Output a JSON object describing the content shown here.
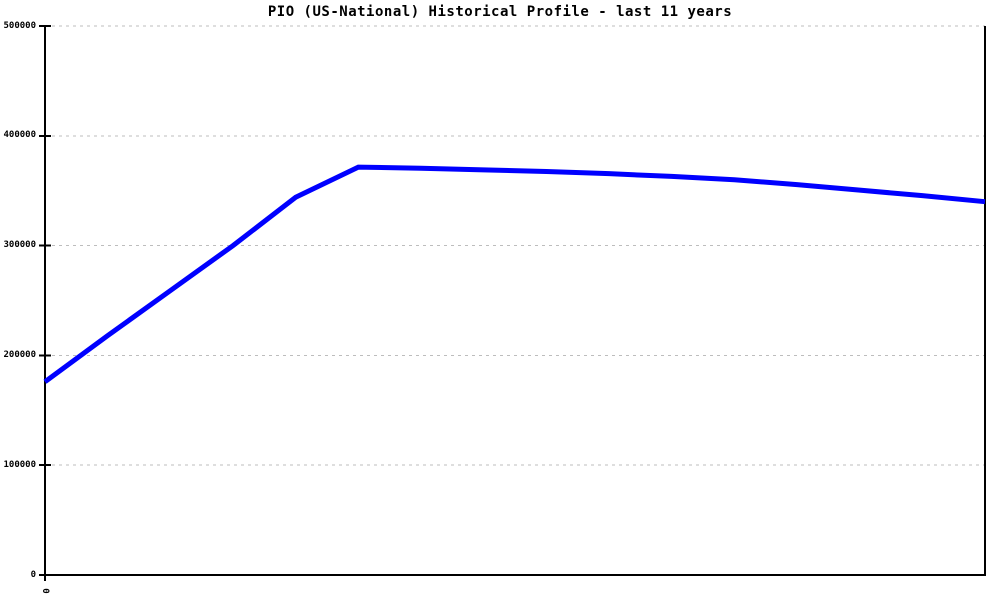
{
  "chart_data": {
    "type": "line",
    "title": "PIO (US-National) Historical Profile - last 11 years",
    "x": [
      0,
      1,
      2,
      3,
      4,
      5,
      6,
      7,
      8,
      9,
      10,
      11,
      12,
      13,
      14,
      15
    ],
    "values": [
      176000,
      218000,
      259000,
      300000,
      344000,
      371500,
      370500,
      369000,
      367500,
      365500,
      363000,
      360000,
      355500,
      350500,
      345500,
      340000
    ],
    "ylim": [
      0,
      500000
    ],
    "yticks": [
      0,
      100000,
      200000,
      300000,
      400000,
      500000
    ],
    "ytick_labels": [
      "0",
      "100000",
      "200000",
      "300000",
      "400000",
      "500000"
    ],
    "xticks": [
      0
    ],
    "xtick_labels": [
      "0"
    ],
    "xtick_rotation_deg": 90,
    "grid": "horizontal dashed",
    "legend": "none",
    "line_width": 5
  },
  "colors": {
    "background": "#ffffff",
    "axis": "#000000",
    "grid": "#bdbdbd",
    "title": "#000000",
    "line": "#0000ff"
  }
}
